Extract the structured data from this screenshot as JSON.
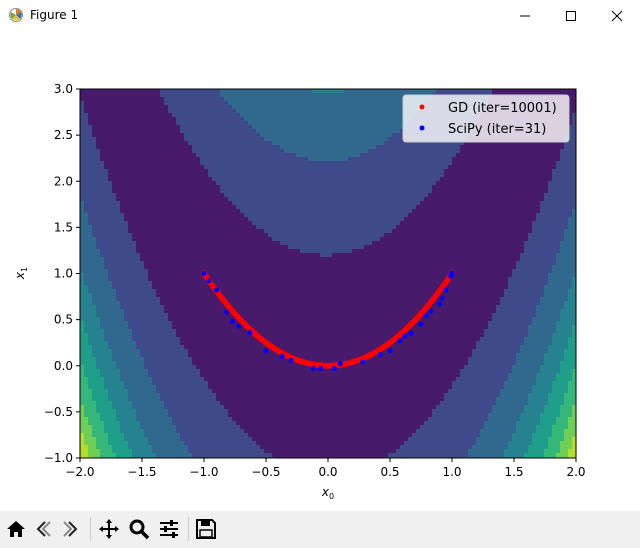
{
  "window": {
    "title": "Figure 1"
  },
  "toolbar": {
    "buttons": [
      "home-icon",
      "back-icon",
      "forward-icon",
      "pan-icon",
      "zoom-icon",
      "configure-subplots-icon",
      "save-icon"
    ]
  },
  "chart_data": {
    "type": "scatter",
    "title": "",
    "xlabel": "x",
    "xlabel_sub": "0",
    "ylabel": "x",
    "ylabel_sub": "1",
    "xlim": [
      -2.0,
      2.0
    ],
    "ylim": [
      -1.0,
      3.0
    ],
    "xticks": [
      -2.0,
      -1.5,
      -1.0,
      -0.5,
      0.0,
      0.5,
      1.0,
      1.5,
      2.0
    ],
    "xtick_labels": [
      "−2.0",
      "−1.5",
      "−1.0",
      "−0.5",
      "0.0",
      "0.5",
      "1.0",
      "1.5",
      "2.0"
    ],
    "yticks": [
      -1.0,
      -0.5,
      0.0,
      0.5,
      1.0,
      1.5,
      2.0,
      2.5,
      3.0
    ],
    "ytick_labels": [
      "−1.0",
      "−0.5",
      "0.0",
      "0.5",
      "1.0",
      "1.5",
      "2.0",
      "2.5",
      "3.0"
    ],
    "background": "filled contour of f(x0,x1) = (x1 - x0^2)^2 + 0.02*(x0^2 + x1^2 + ... ) style valley along x1 = x0^2",
    "contour_levels": 7,
    "contour_colors": [
      "#481a6c",
      "#3e4a89",
      "#31688e",
      "#26828e",
      "#1f9e89",
      "#35b779",
      "#6ece58",
      "#b5de2b"
    ],
    "legend_position": "upper-right",
    "series": [
      {
        "name": "GD (iter=10001)",
        "color": "#ff0000",
        "marker": "circle",
        "path": "parabola x1 = x0^2 from x0=-1.0 to x0=1.0",
        "x_start": -1.0,
        "x_end": 1.0,
        "points": 10001
      },
      {
        "name": "SciPy (iter=31)",
        "color": "#0000ff",
        "marker": "circle",
        "x": [
          -1.0,
          -0.96,
          -0.9,
          -0.82,
          -0.77,
          -0.72,
          -0.63,
          -0.5,
          -0.37,
          -0.3,
          -0.12,
          -0.06,
          0.05,
          0.1,
          0.28,
          0.42,
          0.5,
          0.58,
          0.62,
          0.67,
          0.75,
          0.79,
          0.83,
          0.9,
          0.92,
          0.95,
          0.99,
          1.0,
          1.0,
          1.0,
          1.0
        ],
        "y": [
          1.0,
          0.92,
          0.82,
          0.58,
          0.48,
          0.43,
          0.36,
          0.16,
          0.1,
          0.06,
          -0.03,
          -0.03,
          -0.03,
          0.02,
          0.04,
          0.12,
          0.16,
          0.27,
          0.32,
          0.35,
          0.45,
          0.54,
          0.59,
          0.67,
          0.73,
          0.82,
          0.97,
          0.99,
          1.0,
          1.0,
          1.0
        ]
      }
    ]
  }
}
